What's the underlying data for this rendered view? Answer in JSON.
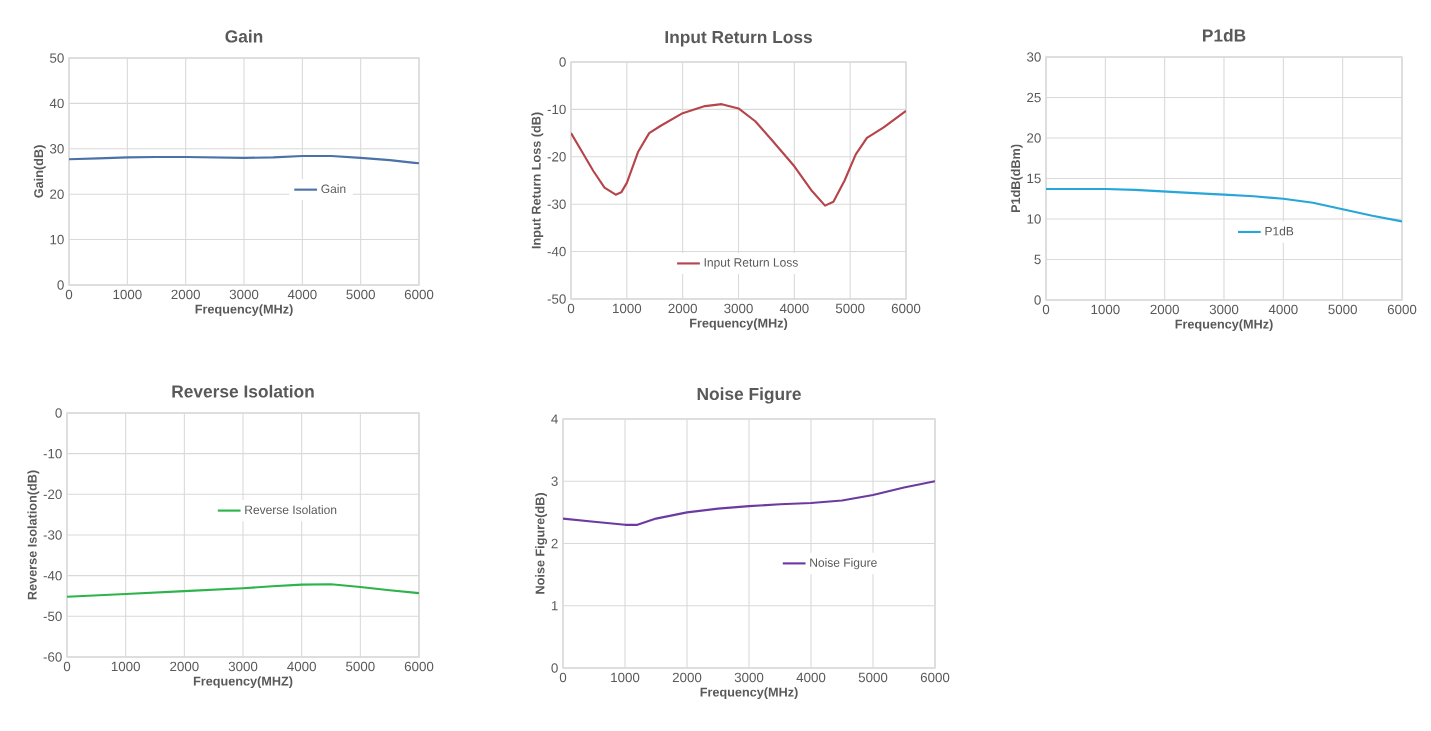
{
  "chart_data": [
    {
      "type": "line",
      "title": "Gain",
      "xlabel": "Frequency(MHz)",
      "ylabel": "Gain(dB)",
      "xlim": [
        0,
        6000
      ],
      "ylim": [
        0,
        50
      ],
      "xticks": [
        0,
        1000,
        2000,
        3000,
        4000,
        5000,
        6000
      ],
      "yticks": [
        0,
        10,
        20,
        30,
        40,
        50
      ],
      "grid": true,
      "legend": "right",
      "x": [
        0,
        500,
        1000,
        1500,
        2000,
        2500,
        3000,
        3500,
        4000,
        4500,
        5000,
        5500,
        6000
      ],
      "series": [
        {
          "name": "Gain",
          "color": "#4a72a8",
          "values": [
            27.7,
            27.9,
            28.1,
            28.2,
            28.2,
            28.1,
            28.0,
            28.1,
            28.4,
            28.4,
            28.0,
            27.5,
            26.8
          ]
        }
      ]
    },
    {
      "type": "line",
      "title": "Input Return Loss",
      "xlabel": "Frequency(MHz)",
      "ylabel": "Input Return Loss (dB)",
      "xlim": [
        0,
        6000
      ],
      "ylim": [
        -50,
        0
      ],
      "xticks": [
        0,
        1000,
        2000,
        3000,
        4000,
        5000,
        6000
      ],
      "yticks": [
        -50,
        -40,
        -30,
        -20,
        -10,
        0
      ],
      "grid": true,
      "legend": "bottom",
      "x": [
        0,
        200,
        400,
        600,
        800,
        900,
        1000,
        1200,
        1400,
        1600,
        2000,
        2400,
        2700,
        3000,
        3300,
        3600,
        4000,
        4300,
        4550,
        4700,
        4900,
        5100,
        5300,
        5600,
        6000
      ],
      "series": [
        {
          "name": "Input Return Loss",
          "color": "#b5454a",
          "values": [
            -15,
            -19,
            -23,
            -26.5,
            -28,
            -27.5,
            -25.5,
            -19,
            -15,
            -13.5,
            -10.8,
            -9.3,
            -8.9,
            -9.8,
            -12.5,
            -16.5,
            -22,
            -27,
            -30.3,
            -29.5,
            -25,
            -19.5,
            -16,
            -13.8,
            -10.3
          ]
        }
      ]
    },
    {
      "type": "line",
      "title": "P1dB",
      "xlabel": "Frequency(MHz)",
      "ylabel": "P1dB(dBm)",
      "xlim": [
        0,
        6000
      ],
      "ylim": [
        0,
        30
      ],
      "xticks": [
        0,
        1000,
        2000,
        3000,
        4000,
        5000,
        6000
      ],
      "yticks": [
        0,
        5,
        10,
        15,
        20,
        25,
        30
      ],
      "grid": true,
      "legend": "bottom right",
      "x": [
        0,
        1000,
        1500,
        2000,
        2500,
        3000,
        3500,
        4000,
        4500,
        5000,
        5500,
        6000
      ],
      "series": [
        {
          "name": "P1dB",
          "color": "#27a6d8",
          "values": [
            13.7,
            13.7,
            13.6,
            13.4,
            13.2,
            13.0,
            12.8,
            12.5,
            12.0,
            11.2,
            10.4,
            9.7
          ]
        }
      ]
    },
    {
      "type": "line",
      "title": "Reverse Isolation",
      "xlabel": "Frequency(MHZ)",
      "ylabel": "Reverse Isolation(dB)",
      "xlim": [
        0,
        6000
      ],
      "ylim": [
        -60,
        0
      ],
      "xticks": [
        0,
        1000,
        2000,
        3000,
        4000,
        5000,
        6000
      ],
      "yticks": [
        -60,
        -50,
        -40,
        -30,
        -20,
        -10,
        0
      ],
      "grid": true,
      "legend": "center",
      "x": [
        0,
        1000,
        2000,
        3000,
        3500,
        4000,
        4500,
        5000,
        5500,
        6000
      ],
      "series": [
        {
          "name": "Reverse Isolation",
          "color": "#2db34a",
          "values": [
            -45.2,
            -44.5,
            -43.8,
            -43.1,
            -42.6,
            -42.2,
            -42.1,
            -42.8,
            -43.6,
            -44.3
          ]
        }
      ]
    },
    {
      "type": "line",
      "title": "Noise Figure",
      "xlabel": "Frequency(MHz)",
      "ylabel": "Noise Figure(dB)",
      "xlim": [
        0,
        6000
      ],
      "ylim": [
        0,
        4
      ],
      "xticks": [
        0,
        1000,
        2000,
        3000,
        4000,
        5000,
        6000
      ],
      "yticks": [
        0,
        1,
        2,
        3,
        4
      ],
      "grid": true,
      "legend": "right",
      "x": [
        0,
        500,
        1000,
        1200,
        1500,
        2000,
        2500,
        3000,
        3500,
        4000,
        4500,
        5000,
        5500,
        6000
      ],
      "series": [
        {
          "name": "Noise Figure",
          "color": "#6c3ba0",
          "values": [
            2.4,
            2.35,
            2.3,
            2.3,
            2.4,
            2.5,
            2.56,
            2.6,
            2.63,
            2.65,
            2.69,
            2.78,
            2.9,
            3.0
          ]
        }
      ]
    }
  ]
}
